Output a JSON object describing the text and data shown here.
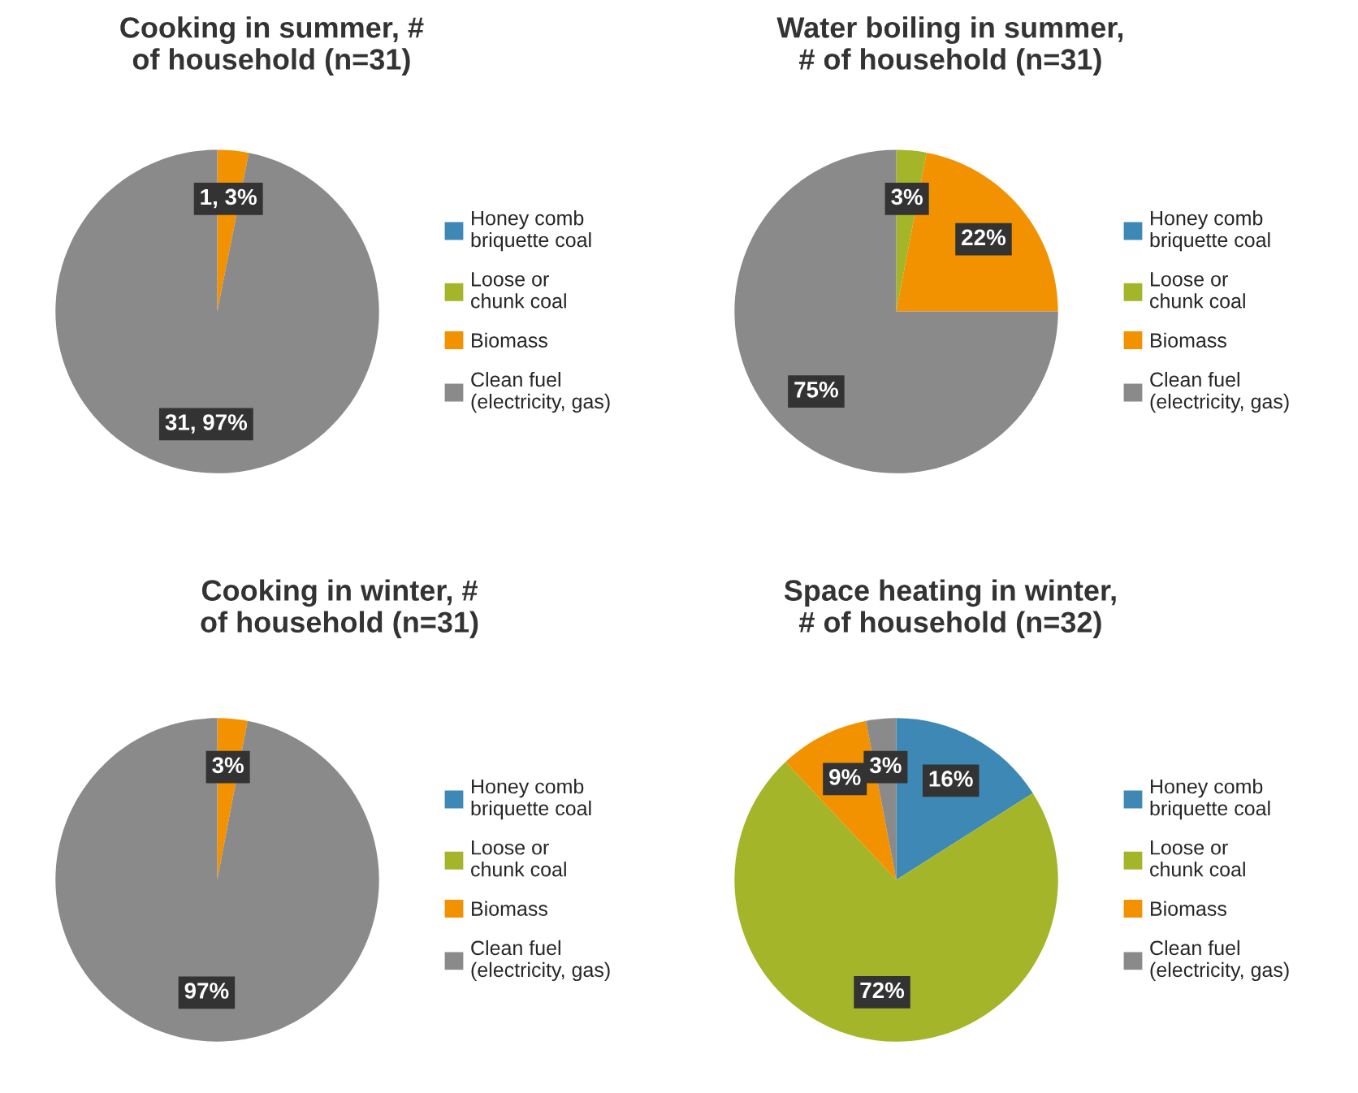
{
  "chart_data": [
    {
      "type": "pie",
      "title": "Cooking in summer, # of household (n=31)",
      "categories": [
        "Honey comb briquette coal",
        "Loose or chunk coal",
        "Biomass",
        "Clean fuel (electricity, gas)"
      ],
      "values": [
        0,
        0,
        1,
        31
      ],
      "value_labels": [
        null,
        null,
        "1, 3%",
        "31, 97%"
      ],
      "colors": [
        "#3e88b6",
        "#a5b52a",
        "#f39200",
        "#8a8a8a"
      ],
      "legend": "right"
    },
    {
      "type": "pie",
      "title": "Water boiling in summer, # of household (n=31)",
      "categories": [
        "Honey comb briquette coal",
        "Loose or chunk coal",
        "Biomass",
        "Clean fuel (electricity, gas)"
      ],
      "values": [
        0,
        3,
        22,
        75
      ],
      "value_labels": [
        null,
        "3%",
        "22%",
        "75%"
      ],
      "colors": [
        "#3e88b6",
        "#a5b52a",
        "#f39200",
        "#8a8a8a"
      ],
      "legend": "right"
    },
    {
      "type": "pie",
      "title": "Cooking in winter, # of household (n=31)",
      "categories": [
        "Honey comb briquette coal",
        "Loose or chunk coal",
        "Biomass",
        "Clean fuel (electricity, gas)"
      ],
      "values": [
        0,
        0,
        3,
        97
      ],
      "value_labels": [
        null,
        null,
        "3%",
        "97%"
      ],
      "colors": [
        "#3e88b6",
        "#a5b52a",
        "#f39200",
        "#8a8a8a"
      ],
      "legend": "right"
    },
    {
      "type": "pie",
      "title": "Space heating in winter, # of household (n=32)",
      "categories": [
        "Honey comb briquette coal",
        "Loose or chunk coal",
        "Biomass",
        "Clean fuel (electricity, gas)"
      ],
      "values": [
        16,
        72,
        9,
        3
      ],
      "value_labels": [
        "16%",
        "72%",
        "9%",
        "3%"
      ],
      "colors": [
        "#3e88b6",
        "#a5b52a",
        "#f39200",
        "#8a8a8a"
      ],
      "legend": "right"
    }
  ]
}
